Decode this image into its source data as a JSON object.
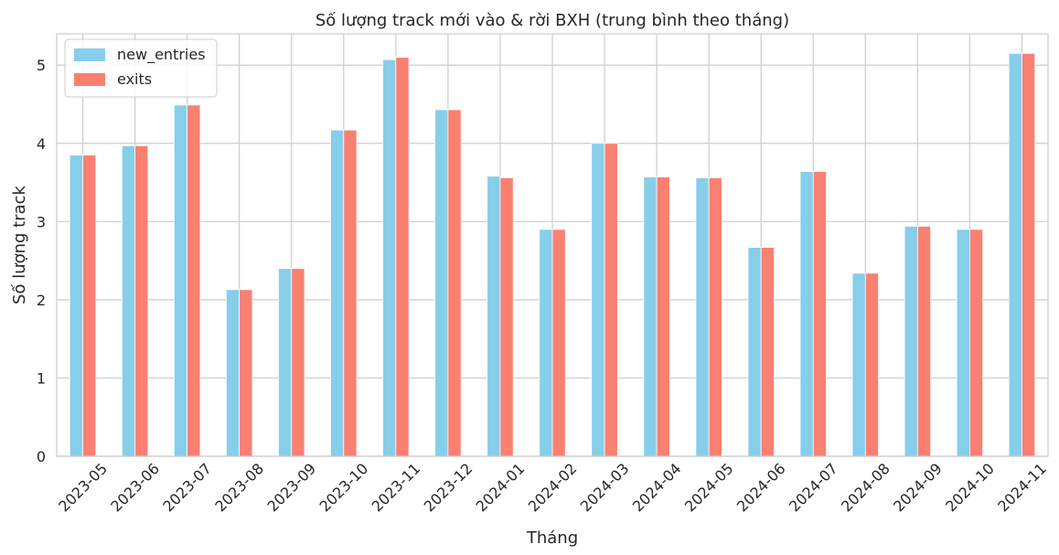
{
  "chart_data": {
    "type": "bar",
    "title": "Số lượng track mới vào & rời BXH (trung bình theo tháng)",
    "xlabel": "Tháng",
    "ylabel": "Số lượng track",
    "ylim": [
      0,
      5.4
    ],
    "yticks": [
      0,
      1,
      2,
      3,
      4,
      5
    ],
    "grid": true,
    "legend_position": "top-left",
    "categories": [
      "2023-05",
      "2023-06",
      "2023-07",
      "2023-08",
      "2023-09",
      "2023-10",
      "2023-11",
      "2023-12",
      "2024-01",
      "2024-02",
      "2024-03",
      "2024-04",
      "2024-05",
      "2024-06",
      "2024-07",
      "2024-08",
      "2024-09",
      "2024-10",
      "2024-11"
    ],
    "series": [
      {
        "name": "new_entries",
        "color": "#87ceeb",
        "values": [
          3.85,
          3.97,
          4.49,
          2.13,
          2.4,
          4.17,
          5.07,
          4.43,
          3.58,
          2.9,
          4.0,
          3.57,
          3.56,
          2.67,
          3.64,
          2.34,
          2.94,
          2.9,
          5.15
        ]
      },
      {
        "name": "exits",
        "color": "#fa8072",
        "values": [
          3.85,
          3.97,
          4.49,
          2.13,
          2.4,
          4.17,
          5.1,
          4.43,
          3.56,
          2.9,
          4.0,
          3.57,
          3.56,
          2.67,
          3.64,
          2.34,
          2.94,
          2.9,
          5.15
        ]
      }
    ]
  }
}
